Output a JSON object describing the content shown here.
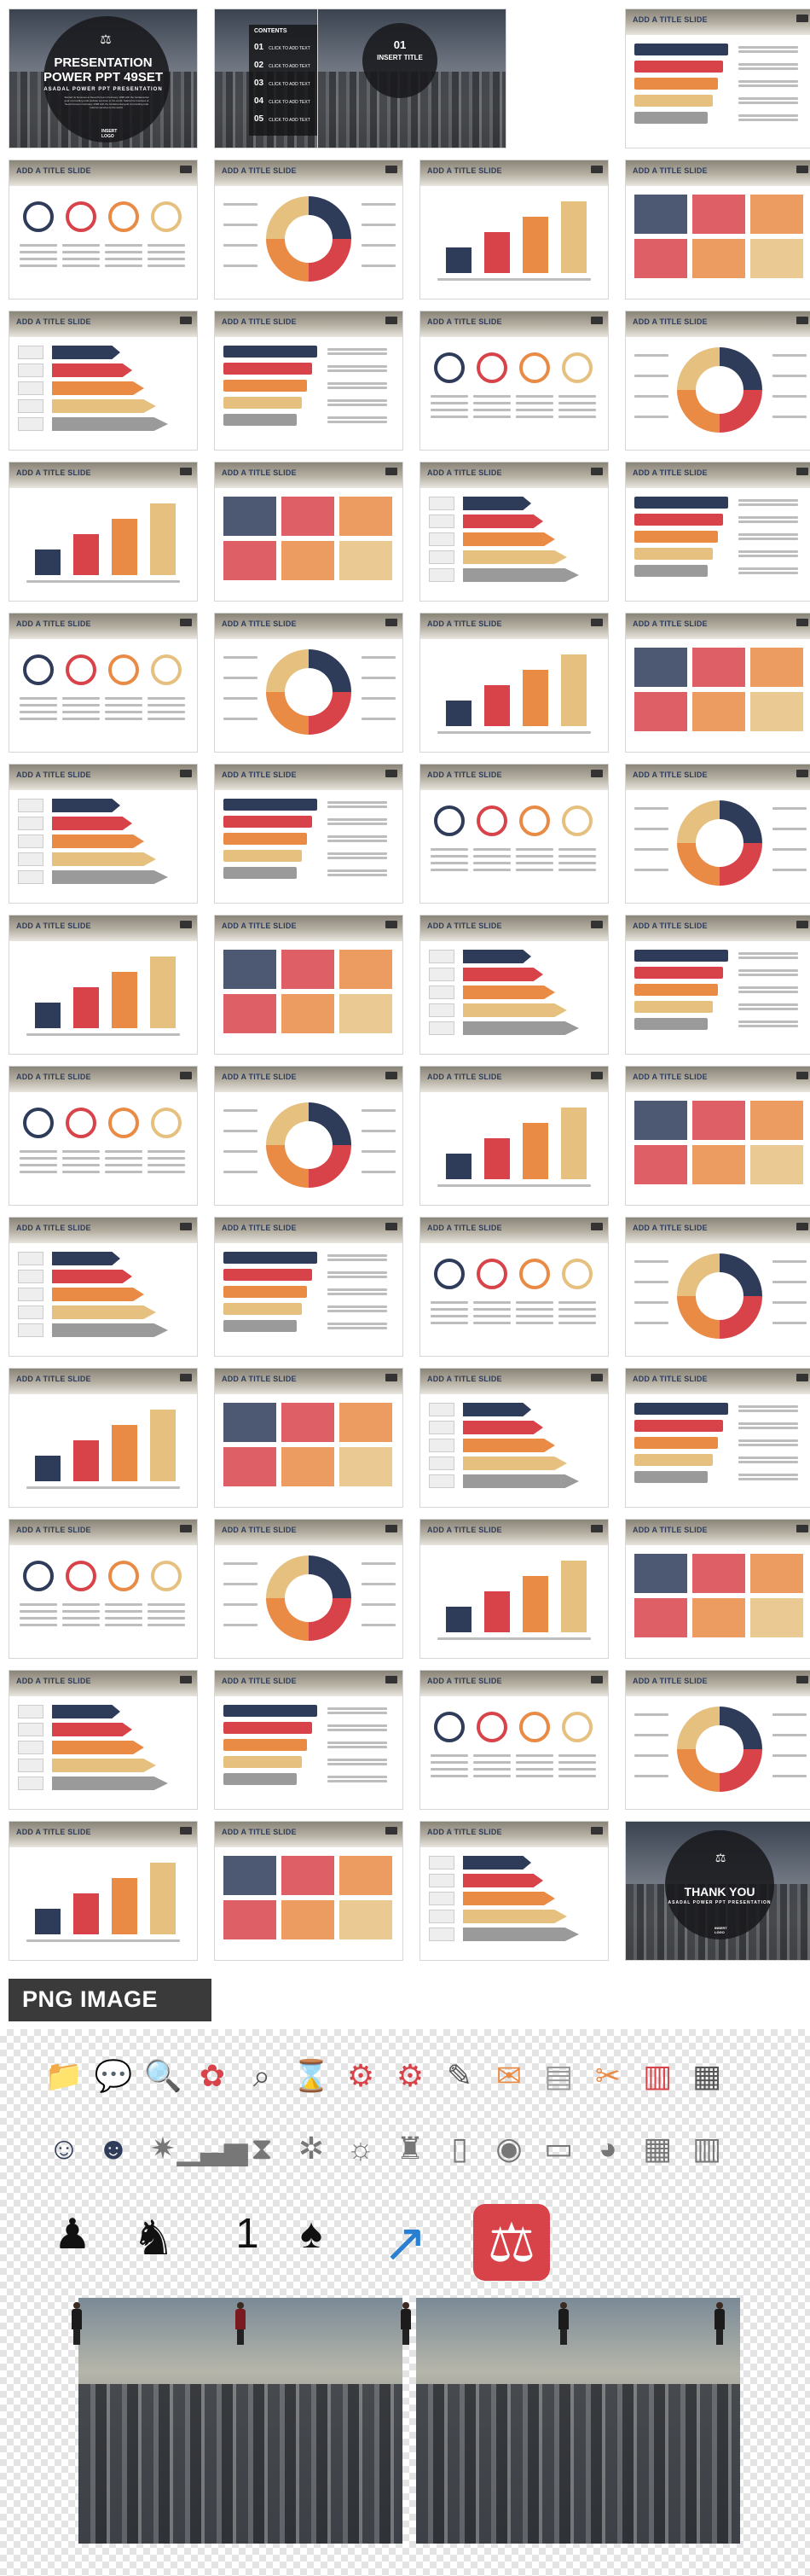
{
  "cover": {
    "title_line1": "PRESENTATION",
    "title_line2": "POWER PPT 49SET",
    "subtitle": "ASADAL POWER PPT PRESENTATION",
    "description": "Started its business at Seoul Korea in February 1998 with the fundamental goal of providing total website services to the world. Started its business at Seoul Korea in February 1998 with the fundamental goal of providing total internet services to the world.",
    "logo": "INSERT LOGO"
  },
  "contents": {
    "label": "CONTENTS",
    "items": [
      {
        "num": "01",
        "text": "CLICK TO ADD TEXT"
      },
      {
        "num": "02",
        "text": "CLICK TO ADD TEXT"
      },
      {
        "num": "03",
        "text": "CLICK TO ADD TEXT"
      },
      {
        "num": "04",
        "text": "CLICK TO ADD TEXT"
      },
      {
        "num": "05",
        "text": "CLICK TO ADD TEXT"
      }
    ]
  },
  "section": {
    "num": "01",
    "title": "INSERT TITLE"
  },
  "slide_title": "ADD A TITLE SLIDE",
  "thank_you": {
    "title": "THANK YOU",
    "subtitle": "ASADAL POWER PPT PRESENTATION",
    "logo": "INSERT LOGO"
  },
  "png_label": "PNG IMAGE",
  "icons": [
    "folder-icon",
    "chat-bubble-icon",
    "magnifier-person-icon",
    "flower-magnifier-icon",
    "magnifier-icon",
    "hourglass-icon",
    "gear-pen-icon",
    "gears-icon",
    "tablet-pen-icon",
    "envelope-icon",
    "document-icon",
    "tools-icon",
    "bar-chart-icon",
    "clipboard-icon",
    "businessman-icon",
    "businesswoman-icon",
    "lightbulb-gear-icon",
    "chart-rising-icon",
    "hourglass-outline-icon",
    "gears-outline-icon",
    "lightbulb-icon",
    "shirt-tie-icon",
    "smartphone-icon",
    "browser-globe-icon",
    "wallet-icon",
    "palette-icon",
    "calculator-icon",
    "notebook-icon",
    "speaker-podium-icon",
    "meeting-table-icon",
    "number-one-winner-icon",
    "celebrating-person-icon",
    "growth-arrow-coins-icon",
    "justice-scales-icon"
  ],
  "accent_colors": {
    "navy": "#2e3c5a",
    "red": "#d8434a",
    "orange": "#e98a45",
    "sand": "#e6c07f",
    "gray": "#9a9a9a"
  }
}
